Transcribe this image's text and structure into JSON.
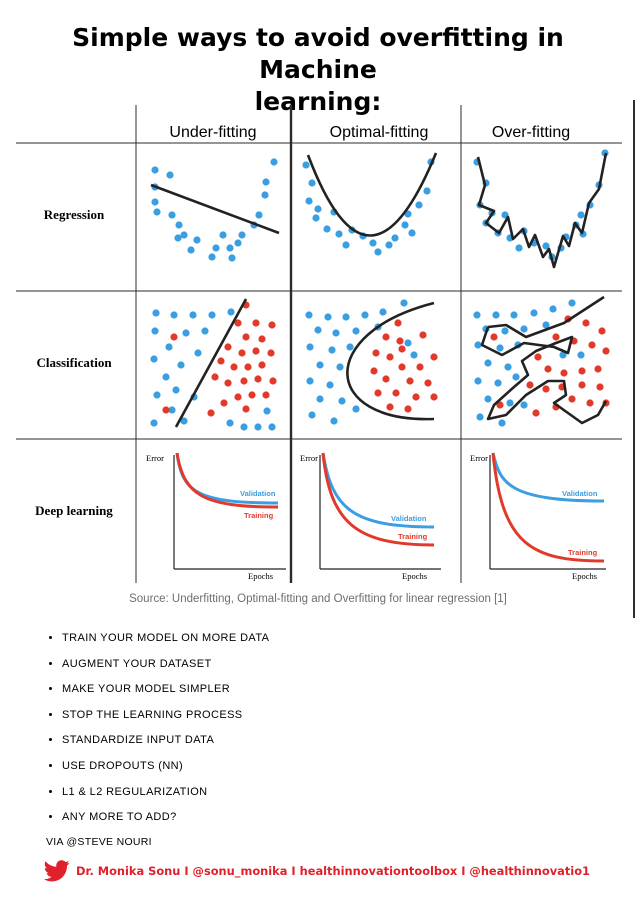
{
  "title": {
    "line1": "Simple ways to avoid overfitting in Machine",
    "line2": "learning:"
  },
  "grid": {
    "columns": [
      "Under-fitting",
      "Optimal-fitting",
      "Over-fitting"
    ],
    "rows": [
      "Regression",
      "Classification",
      "Deep learning"
    ]
  },
  "chart_data": {
    "type": "line",
    "axis_label_y": "Error",
    "axis_label_x": "Epochs",
    "series_labels": [
      "Validation",
      "Training"
    ],
    "colors": {
      "validation": "#3a9ee2",
      "training": "#e23a2a",
      "points_blue": "#3a9ee2",
      "points_red": "#e23a2a",
      "fit_line": "#222222"
    }
  },
  "source": "Source: Underfitting, Optimal-fitting and Overfitting for linear regression [1]",
  "tips": [
    "TRAIN YOUR MODEL ON MORE DATA",
    "AUGMENT YOUR DATASET",
    "MAKE YOUR MODEL SIMPLER",
    "STOP THE LEARNING PROCESS",
    "STANDARDIZE INPUT DATA",
    "USE DROPOUTS (NN)",
    "L1 & L2 REGULARIZATION",
    "ANY MORE TO ADD?"
  ],
  "via": "VIA @STEVE NOURI",
  "footer": {
    "icon": "twitter-bird-icon",
    "credit": "Dr. Monika Sonu I @sonu_monika I healthinnovationtoolbox I @healthinnovatio1"
  }
}
